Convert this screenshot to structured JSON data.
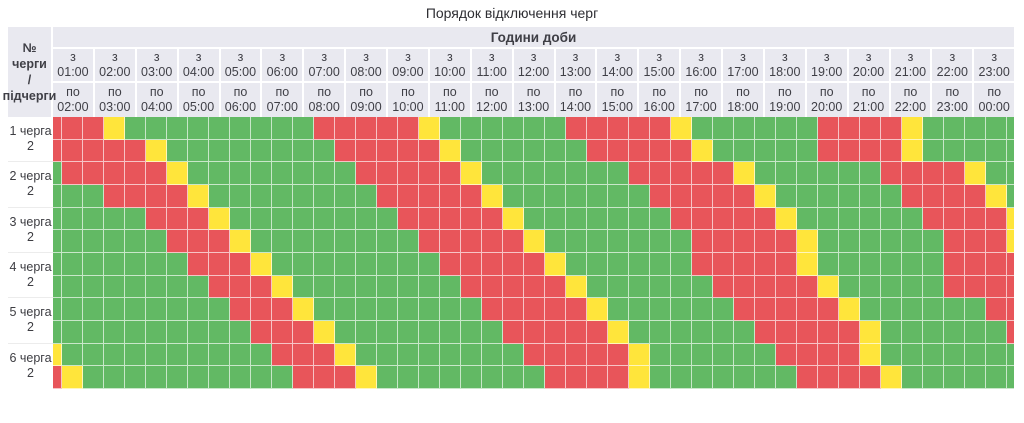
{
  "title": "Порядок відключення черг",
  "header": {
    "hours_title": "Години доби",
    "queue_col_label": [
      "№ черги",
      "/",
      "підчерги"
    ],
    "from_prefix": "з",
    "to_prefix": "по",
    "columns": [
      {
        "from": "01:00",
        "to": "02:00"
      },
      {
        "from": "02:00",
        "to": "03:00"
      },
      {
        "from": "03:00",
        "to": "04:00"
      },
      {
        "from": "04:00",
        "to": "05:00"
      },
      {
        "from": "05:00",
        "to": "06:00"
      },
      {
        "from": "06:00",
        "to": "07:00"
      },
      {
        "from": "07:00",
        "to": "08:00"
      },
      {
        "from": "08:00",
        "to": "09:00"
      },
      {
        "from": "09:00",
        "to": "10:00"
      },
      {
        "from": "10:00",
        "to": "11:00"
      },
      {
        "from": "11:00",
        "to": "12:00"
      },
      {
        "from": "12:00",
        "to": "13:00"
      },
      {
        "from": "13:00",
        "to": "14:00"
      },
      {
        "from": "14:00",
        "to": "15:00"
      },
      {
        "from": "15:00",
        "to": "16:00"
      },
      {
        "from": "16:00",
        "to": "17:00"
      },
      {
        "from": "17:00",
        "to": "18:00"
      },
      {
        "from": "18:00",
        "to": "19:00"
      },
      {
        "from": "19:00",
        "to": "20:00"
      },
      {
        "from": "20:00",
        "to": "21:00"
      },
      {
        "from": "21:00",
        "to": "22:00"
      },
      {
        "from": "22:00",
        "to": "23:00"
      },
      {
        "from": "23:00",
        "to": "00:00"
      }
    ]
  },
  "colors": {
    "R": "#e8555a",
    "G": "#62b964",
    "Y": "#ffe53b",
    "header_bg": "#e9e9f0"
  },
  "queues": [
    {
      "label": "1 черга",
      "sub_label": "2",
      "rows": [
        "RRRYGGGGGGGGGRRRRRYGGGGGGRRRRRYGGGGGGRRRRYGGGGG",
        "RRRRRYGGGGGGGGRRRRRYGGGGGGRRRRRYGGGGGRRRRYGGGGG"
      ]
    },
    {
      "label": "2 черга",
      "sub_label": "2",
      "rows": [
        "GRRRRRYGGGGGGGGRRRRRYGGGGGGGRRRRRYGGGGGGRRRRYGG",
        "GGGRRRRYGGGGGGGGRRRRRYGGGGGGGRRRRRYGGGGGGRRRRYG"
      ]
    },
    {
      "label": "3 черга",
      "sub_label": "2",
      "rows": [
        "GGGGGRRRYGGGGGGGGRRRRRYGGGGGGGRRRRRYGGGGGGRRRRY",
        "GGGGGGRRRYGGGGGGGGRRRRRYGGGGGGGRRRRRYGGGGGGRRRY"
      ]
    },
    {
      "label": "4 черга",
      "sub_label": "2",
      "rows": [
        "GGGGGGGRRRYGGGGGGGGRRRRRYGGGGGGRRRRRYGGGGGGRRRR",
        "GGGGGGGGRRRYGGGGGGGGRRRRRYGGGGGGRRRRRYGGGGGRRRR"
      ]
    },
    {
      "label": "5 черга",
      "sub_label": "2",
      "rows": [
        "GGGGGGGGGRRRYGGGGGGGGRRRRRYGGGGGGRRRRRYGGGGGGRR",
        "GGGGGGGGGGRRRYGGGGGGGGRRRRRYGGGGGGRRRRRYGGGGGGR"
      ]
    },
    {
      "label": "6 черга",
      "sub_label": "2",
      "rows": [
        "YGGGGGGGGGGRRRYGGGGGGGGRRRRRYGGGGGGRRRRYGGGGGGG",
        "RYGGGGGGGGGGRRRYGGGGGGGGRRRRYGGGGGGGRRRRYGGGGGG"
      ]
    }
  ],
  "chart_data": {
    "type": "heatmap",
    "title": "Порядок відключення черг",
    "x_title": "Години доби",
    "x_categories": [
      "01:00-02:00",
      "02:00-03:00",
      "03:00-04:00",
      "04:00-05:00",
      "05:00-06:00",
      "06:00-07:00",
      "07:00-08:00",
      "08:00-09:00",
      "09:00-10:00",
      "10:00-11:00",
      "11:00-12:00",
      "12:00-13:00",
      "13:00-14:00",
      "14:00-15:00",
      "15:00-16:00",
      "16:00-17:00",
      "17:00-18:00",
      "18:00-19:00",
      "19:00-20:00",
      "20:00-21:00",
      "21:00-22:00",
      "22:00-23:00",
      "23:00-00:00"
    ],
    "row_labels": [
      "1 черга / 1",
      "1 черга / 2",
      "2 черга / 1",
      "2 черга / 2",
      "3 черга / 1",
      "3 черга / 2",
      "4 черга / 1",
      "4 черга / 2",
      "5 черга / 1",
      "5 черга / 2",
      "6 черга / 1",
      "6 черга / 2"
    ],
    "cell_resolution": "30min, 47 slots per row starting 00:30 (first and last slot clipped at grid edges)",
    "legend": {
      "R": "red (outage)",
      "G": "green (power on)",
      "Y": "yellow (possible outage)"
    },
    "cells": [
      "RRRYGGGGGGGGGRRRRRYGGGGGGRRRRRYGGGGGGRRRRYGGGGG",
      "RRRRRYGGGGGGGGRRRRRYGGGGGGRRRRRYGGGGGRRRRYGGGGG",
      "GRRRRRYGGGGGGGGRRRRRYGGGGGGGRRRRRYGGGGGGRRRRYGG",
      "GGGRRRRYGGGGGGGGRRRRRYGGGGGGGRRRRRYGGGGGGRRRRYG",
      "GGGGGRRRYGGGGGGGGRRRRRYGGGGGGGRRRRRYGGGGGGRRRRY",
      "GGGGGGRRRYGGGGGGGGRRRRRYGGGGGGGRRRRRYGGGGGGRRRY",
      "GGGGGGGRRRYGGGGGGGGRRRRRYGGGGGGRRRRRYGGGGGGRRRR",
      "GGGGGGGGRRRYGGGGGGGGRRRRRYGGGGGGRRRRRYGGGGGRRRR",
      "GGGGGGGGGRRRYGGGGGGGGRRRRRYGGGGGGRRRRRYGGGGGGRR",
      "GGGGGGGGGGRRRYGGGGGGGGRRRRRYGGGGGGRRRRRYGGGGGGR",
      "YGGGGGGGGGGRRRYGGGGGGGGRRRRRYGGGGGGRRRRYGGGGGGG",
      "RYGGGGGGGGGGRRRYGGGGGGGGRRRRYGGGGGGGRRRRYGGGGGG"
    ]
  }
}
